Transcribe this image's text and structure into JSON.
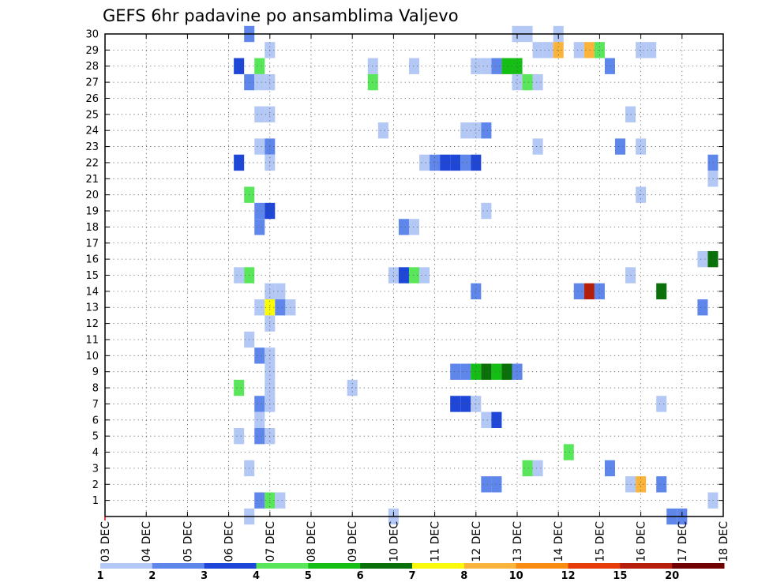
{
  "chart_data": {
    "type": "heatmap",
    "title": "GEFS 6hr padavine po ansamblima Valjevo",
    "xlabel": "",
    "ylabel": "",
    "x_ticks": [
      "03 DEC",
      "04 DEC",
      "05 DEC",
      "06 DEC",
      "07 DEC",
      "08 DEC",
      "09 DEC",
      "10 DEC",
      "11 DEC",
      "12 DEC",
      "13 DEC",
      "14 DEC",
      "15 DEC",
      "16 DEC",
      "17 DEC",
      "18 DEC"
    ],
    "xlim_days": [
      3,
      18
    ],
    "y_ticks": [
      1,
      2,
      3,
      4,
      5,
      6,
      7,
      8,
      9,
      10,
      11,
      12,
      13,
      14,
      15,
      16,
      17,
      18,
      19,
      20,
      21,
      22,
      23,
      24,
      25,
      26,
      27,
      28,
      29,
      30
    ],
    "ylim": [
      0,
      30
    ],
    "grid": true,
    "cell_hours": 6,
    "colorbar": {
      "labels": [
        "1",
        "2",
        "3",
        "4",
        "5",
        "6",
        "7",
        "8",
        "10",
        "12",
        "15",
        "20"
      ],
      "colors": [
        "#b4c8f5",
        "#5f87eb",
        "#1e46d7",
        "#5ae65a",
        "#14be14",
        "#0a700a",
        "#fafa0a",
        "#fab43c",
        "#fa8c14",
        "#e63c0a",
        "#b41e0a",
        "#700000"
      ]
    },
    "cells": [
      {
        "member": 30,
        "day": 6.5,
        "value": 2
      },
      {
        "member": 30,
        "day": 13,
        "value": 1
      },
      {
        "member": 30,
        "day": 13.25,
        "value": 1
      },
      {
        "member": 30,
        "day": 14,
        "value": 1
      },
      {
        "member": 29,
        "day": 7,
        "value": 1
      },
      {
        "member": 29,
        "day": 13.5,
        "value": 1
      },
      {
        "member": 29,
        "day": 13.75,
        "value": 1
      },
      {
        "member": 29,
        "day": 14,
        "value": 8
      },
      {
        "member": 29,
        "day": 14.5,
        "value": 1
      },
      {
        "member": 29,
        "day": 14.75,
        "value": 8
      },
      {
        "member": 29,
        "day": 15,
        "value": 4
      },
      {
        "member": 29,
        "day": 16,
        "value": 1
      },
      {
        "member": 29,
        "day": 16.25,
        "value": 1
      },
      {
        "member": 28,
        "day": 6.25,
        "value": 3
      },
      {
        "member": 28,
        "day": 6.75,
        "value": 4
      },
      {
        "member": 28,
        "day": 9.5,
        "value": 1
      },
      {
        "member": 28,
        "day": 10.5,
        "value": 1
      },
      {
        "member": 28,
        "day": 12,
        "value": 1
      },
      {
        "member": 28,
        "day": 12.25,
        "value": 1
      },
      {
        "member": 28,
        "day": 12.5,
        "value": 2
      },
      {
        "member": 28,
        "day": 12.75,
        "value": 5
      },
      {
        "member": 28,
        "day": 13,
        "value": 5
      },
      {
        "member": 28,
        "day": 15.25,
        "value": 2
      },
      {
        "member": 27,
        "day": 6.5,
        "value": 2
      },
      {
        "member": 27,
        "day": 6.75,
        "value": 1
      },
      {
        "member": 27,
        "day": 7,
        "value": 1
      },
      {
        "member": 27,
        "day": 9.5,
        "value": 4
      },
      {
        "member": 27,
        "day": 13,
        "value": 1
      },
      {
        "member": 27,
        "day": 13.25,
        "value": 4
      },
      {
        "member": 27,
        "day": 13.5,
        "value": 1
      },
      {
        "member": 25,
        "day": 6.75,
        "value": 1
      },
      {
        "member": 25,
        "day": 7,
        "value": 1
      },
      {
        "member": 25,
        "day": 15.75,
        "value": 1
      },
      {
        "member": 24,
        "day": 9.75,
        "value": 1
      },
      {
        "member": 24,
        "day": 11.75,
        "value": 1
      },
      {
        "member": 24,
        "day": 12,
        "value": 1
      },
      {
        "member": 24,
        "day": 12.25,
        "value": 2
      },
      {
        "member": 23,
        "day": 6.75,
        "value": 1
      },
      {
        "member": 23,
        "day": 7,
        "value": 2
      },
      {
        "member": 23,
        "day": 13.5,
        "value": 1
      },
      {
        "member": 23,
        "day": 15.5,
        "value": 2
      },
      {
        "member": 23,
        "day": 16,
        "value": 1
      },
      {
        "member": 22,
        "day": 6.25,
        "value": 3
      },
      {
        "member": 22,
        "day": 7,
        "value": 1
      },
      {
        "member": 22,
        "day": 10.75,
        "value": 1
      },
      {
        "member": 22,
        "day": 11,
        "value": 2
      },
      {
        "member": 22,
        "day": 11.25,
        "value": 3
      },
      {
        "member": 22,
        "day": 11.5,
        "value": 3
      },
      {
        "member": 22,
        "day": 11.75,
        "value": 2
      },
      {
        "member": 22,
        "day": 12,
        "value": 3
      },
      {
        "member": 22,
        "day": 17.75,
        "value": 2
      },
      {
        "member": 21,
        "day": 17.75,
        "value": 1
      },
      {
        "member": 20,
        "day": 6.5,
        "value": 4
      },
      {
        "member": 20,
        "day": 16,
        "value": 1
      },
      {
        "member": 19,
        "day": 6.75,
        "value": 2
      },
      {
        "member": 19,
        "day": 7,
        "value": 3
      },
      {
        "member": 19,
        "day": 12.25,
        "value": 1
      },
      {
        "member": 18,
        "day": 6.75,
        "value": 2
      },
      {
        "member": 18,
        "day": 10.25,
        "value": 2
      },
      {
        "member": 18,
        "day": 10.5,
        "value": 1
      },
      {
        "member": 16,
        "day": 17.5,
        "value": 1
      },
      {
        "member": 16,
        "day": 17.75,
        "value": 6
      },
      {
        "member": 15,
        "day": 6.25,
        "value": 1
      },
      {
        "member": 15,
        "day": 6.5,
        "value": 4
      },
      {
        "member": 15,
        "day": 10,
        "value": 1
      },
      {
        "member": 15,
        "day": 10.25,
        "value": 3
      },
      {
        "member": 15,
        "day": 10.5,
        "value": 4
      },
      {
        "member": 15,
        "day": 10.75,
        "value": 1
      },
      {
        "member": 15,
        "day": 15.75,
        "value": 1
      },
      {
        "member": 14,
        "day": 7,
        "value": 1
      },
      {
        "member": 14,
        "day": 7.25,
        "value": 1
      },
      {
        "member": 14,
        "day": 12,
        "value": 2
      },
      {
        "member": 14,
        "day": 14.5,
        "value": 2
      },
      {
        "member": 14,
        "day": 14.75,
        "value": 15
      },
      {
        "member": 14,
        "day": 15,
        "value": 2
      },
      {
        "member": 14,
        "day": 16.5,
        "value": 6
      },
      {
        "member": 13,
        "day": 6.75,
        "value": 1
      },
      {
        "member": 13,
        "day": 7,
        "value": 7
      },
      {
        "member": 13,
        "day": 7.25,
        "value": 2
      },
      {
        "member": 13,
        "day": 7.5,
        "value": 1
      },
      {
        "member": 13,
        "day": 17.5,
        "value": 2
      },
      {
        "member": 12,
        "day": 7,
        "value": 1
      },
      {
        "member": 11,
        "day": 6.5,
        "value": 1
      },
      {
        "member": 10,
        "day": 6.75,
        "value": 2
      },
      {
        "member": 10,
        "day": 7,
        "value": 1
      },
      {
        "member": 9,
        "day": 7,
        "value": 1
      },
      {
        "member": 9,
        "day": 11.5,
        "value": 2
      },
      {
        "member": 9,
        "day": 11.75,
        "value": 2
      },
      {
        "member": 9,
        "day": 12,
        "value": 5
      },
      {
        "member": 9,
        "day": 12.25,
        "value": 6
      },
      {
        "member": 9,
        "day": 12.5,
        "value": 5
      },
      {
        "member": 9,
        "day": 12.75,
        "value": 6
      },
      {
        "member": 9,
        "day": 13,
        "value": 2
      },
      {
        "member": 8,
        "day": 6.25,
        "value": 4
      },
      {
        "member": 8,
        "day": 7,
        "value": 1
      },
      {
        "member": 8,
        "day": 9,
        "value": 1
      },
      {
        "member": 7,
        "day": 6.75,
        "value": 2
      },
      {
        "member": 7,
        "day": 7,
        "value": 1
      },
      {
        "member": 7,
        "day": 11.5,
        "value": 3
      },
      {
        "member": 7,
        "day": 11.75,
        "value": 3
      },
      {
        "member": 7,
        "day": 12,
        "value": 1
      },
      {
        "member": 7,
        "day": 16.5,
        "value": 1
      },
      {
        "member": 6,
        "day": 6.75,
        "value": 1
      },
      {
        "member": 6,
        "day": 12.25,
        "value": 1
      },
      {
        "member": 6,
        "day": 12.5,
        "value": 3
      },
      {
        "member": 5,
        "day": 6.25,
        "value": 1
      },
      {
        "member": 5,
        "day": 6.75,
        "value": 2
      },
      {
        "member": 5,
        "day": 7,
        "value": 1
      },
      {
        "member": 4,
        "day": 14.25,
        "value": 4
      },
      {
        "member": 3,
        "day": 6.5,
        "value": 1
      },
      {
        "member": 3,
        "day": 13.25,
        "value": 4
      },
      {
        "member": 3,
        "day": 13.5,
        "value": 1
      },
      {
        "member": 3,
        "day": 15.25,
        "value": 2
      },
      {
        "member": 2,
        "day": 12.25,
        "value": 2
      },
      {
        "member": 2,
        "day": 12.5,
        "value": 2
      },
      {
        "member": 2,
        "day": 15.75,
        "value": 1
      },
      {
        "member": 2,
        "day": 16,
        "value": 8
      },
      {
        "member": 2,
        "day": 16.5,
        "value": 2
      },
      {
        "member": 1,
        "day": 6.75,
        "value": 2
      },
      {
        "member": 1,
        "day": 7,
        "value": 4
      },
      {
        "member": 1,
        "day": 7.25,
        "value": 1
      },
      {
        "member": 1,
        "day": 17.75,
        "value": 1
      },
      {
        "member": 0,
        "day": 6.5,
        "value": 1
      },
      {
        "member": 0,
        "day": 10,
        "value": 1
      },
      {
        "member": 0,
        "day": 16.75,
        "value": 2
      },
      {
        "member": 0,
        "day": 17,
        "value": 2
      }
    ]
  }
}
